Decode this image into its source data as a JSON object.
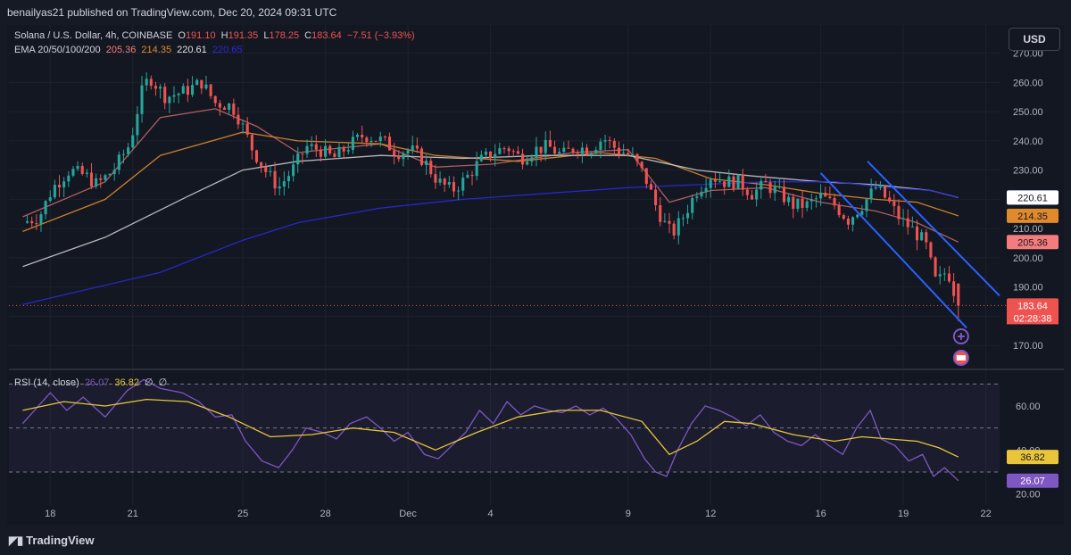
{
  "header": {
    "publisher": "benailyas21 published on TradingView.com, Dec 20, 2024 09:31 UTC"
  },
  "legend": {
    "symbol": "Solana / U.S. Dollar, 4h, COINBASE",
    "o_label": "O",
    "o": "191.10",
    "h_label": "H",
    "h": "191.35",
    "l_label": "L",
    "l": "178.25",
    "c_label": "C",
    "c": "183.64",
    "change": "−7.51 (−3.93%)",
    "ema_label": "EMA 20/50/100/200",
    "ema20": "205.36",
    "ema50": "214.35",
    "ema100": "220.61",
    "ema200": "220.65"
  },
  "rsi_legend": {
    "label": "RSI (14, close)",
    "rsi": "26.07",
    "ma": "36.82",
    "n1": "∅",
    "n2": "∅"
  },
  "currency_button": "USD",
  "footer": {
    "brand": "TradingView"
  },
  "colors": {
    "up": "#26a69a",
    "down": "#ef5350",
    "ema20": "#f47c7c",
    "ema50": "#e08a2c",
    "ema100": "#c9c9c9",
    "ema200": "#2a2ad8",
    "rsi": "#7e57c2",
    "rsi_ma": "#e8c53a",
    "channel": "#2962ff"
  },
  "chart_data": [
    {
      "type": "candlestick",
      "title": "Solana / U.S. Dollar, 4h, COINBASE",
      "ylim": [
        163,
        276
      ],
      "y_ticks": [
        170,
        180,
        190,
        200,
        210,
        220,
        230,
        240,
        250,
        260,
        270
      ],
      "y_tick_labels": [
        "170.00",
        "",
        "190.00",
        "200.00",
        "210.00",
        "220.00",
        "230.00",
        "240.00",
        "250.00",
        "260.00",
        "270.00"
      ],
      "x_tick_labels": [
        {
          "label": "18",
          "day": 1
        },
        {
          "label": "21",
          "day": 4
        },
        {
          "label": "25",
          "day": 8
        },
        {
          "label": "28",
          "day": 11
        },
        {
          "label": "Dec",
          "day": 14
        },
        {
          "label": "4",
          "day": 17
        },
        {
          "label": "9",
          "day": 22
        },
        {
          "label": "12",
          "day": 25
        },
        {
          "label": "16",
          "day": 29
        },
        {
          "label": "19",
          "day": 32
        },
        {
          "label": "22",
          "day": 35
        }
      ],
      "x_range_days": [
        -0.5,
        35.5
      ],
      "current_price": 183.64,
      "countdown": "02:28:38",
      "price_scale_badges": [
        {
          "value": 220.65,
          "label": "220.65",
          "bg": "#2a2ad8",
          "fg": "#ffffff"
        },
        {
          "value": 220.61,
          "label": "220.61",
          "bg": "#ffffff",
          "fg": "#131722"
        },
        {
          "value": 214.35,
          "label": "214.35",
          "bg": "#e08a2c",
          "fg": "#131722"
        },
        {
          "value": 205.36,
          "label": "205.36",
          "bg": "#f47c7c",
          "fg": "#131722"
        },
        {
          "value": 183.64,
          "label": "183.64",
          "bg": "#ef5350",
          "fg": "#ffffff"
        }
      ],
      "price_path": [
        [
          0,
          212
        ],
        [
          0.6,
          214
        ],
        [
          1.1,
          224
        ],
        [
          1.7,
          230
        ],
        [
          2.3,
          228
        ],
        [
          2.7,
          225
        ],
        [
          3.3,
          230
        ],
        [
          3.9,
          239
        ],
        [
          4.3,
          256
        ],
        [
          4.6,
          262
        ],
        [
          5.2,
          255
        ],
        [
          5.9,
          257
        ],
        [
          6.5,
          260
        ],
        [
          7.0,
          253
        ],
        [
          7.6,
          252
        ],
        [
          7.9,
          247
        ],
        [
          8.3,
          238
        ],
        [
          8.8,
          230
        ],
        [
          9.3,
          224
        ],
        [
          9.8,
          230
        ],
        [
          10.3,
          238
        ],
        [
          10.8,
          237
        ],
        [
          11.3,
          234
        ],
        [
          11.8,
          238
        ],
        [
          12.4,
          242
        ],
        [
          13.1,
          240
        ],
        [
          13.6,
          236
        ],
        [
          14.1,
          237
        ],
        [
          14.6,
          233
        ],
        [
          15.1,
          226
        ],
        [
          15.6,
          223
        ],
        [
          16.1,
          227
        ],
        [
          16.6,
          233
        ],
        [
          17.1,
          236
        ],
        [
          17.6,
          238
        ],
        [
          18.1,
          234
        ],
        [
          18.6,
          237
        ],
        [
          19.1,
          238
        ],
        [
          19.6,
          235
        ],
        [
          20.1,
          238
        ],
        [
          20.6,
          237
        ],
        [
          21.1,
          241
        ],
        [
          21.6,
          237
        ],
        [
          22.1,
          235
        ],
        [
          22.6,
          228
        ],
        [
          23.0,
          218
        ],
        [
          23.3,
          212
        ],
        [
          23.6,
          208
        ],
        [
          24.0,
          214
        ],
        [
          24.5,
          223
        ],
        [
          25.0,
          228
        ],
        [
          25.5,
          226
        ],
        [
          26.0,
          226
        ],
        [
          26.5,
          222
        ],
        [
          27.0,
          225
        ],
        [
          27.5,
          222
        ],
        [
          28.0,
          218
        ],
        [
          28.5,
          218
        ],
        [
          29.0,
          221
        ],
        [
          29.5,
          218
        ],
        [
          30.0,
          213
        ],
        [
          30.5,
          218
        ],
        [
          31.0,
          224
        ],
        [
          31.4,
          220
        ],
        [
          31.9,
          213
        ],
        [
          32.3,
          210
        ],
        [
          32.8,
          205
        ],
        [
          33.2,
          191
        ],
        [
          33.6,
          196
        ],
        [
          34.0,
          183.6
        ]
      ],
      "ema_series": {
        "ema20": [
          [
            0,
            214
          ],
          [
            3,
            226
          ],
          [
            5,
            248
          ],
          [
            7,
            251
          ],
          [
            8.5,
            245
          ],
          [
            10,
            236
          ],
          [
            13,
            239
          ],
          [
            15,
            231
          ],
          [
            17,
            232
          ],
          [
            20,
            236
          ],
          [
            22,
            237
          ],
          [
            23.5,
            219
          ],
          [
            25,
            223
          ],
          [
            27,
            224
          ],
          [
            29,
            219
          ],
          [
            31,
            216
          ],
          [
            32.5,
            212
          ],
          [
            34,
            205.36
          ]
        ],
        "ema50": [
          [
            0,
            209
          ],
          [
            3,
            220
          ],
          [
            5,
            235
          ],
          [
            8,
            243
          ],
          [
            10,
            240
          ],
          [
            13,
            239
          ],
          [
            15,
            235
          ],
          [
            18,
            233
          ],
          [
            21,
            236
          ],
          [
            23,
            234
          ],
          [
            25,
            227
          ],
          [
            27,
            225
          ],
          [
            29,
            222
          ],
          [
            31,
            220
          ],
          [
            32.5,
            219
          ],
          [
            34,
            214.35
          ]
        ],
        "ema100": [
          [
            0,
            197
          ],
          [
            3,
            207
          ],
          [
            6,
            221
          ],
          [
            8,
            230
          ],
          [
            10,
            233
          ],
          [
            13,
            235
          ],
          [
            16,
            234
          ],
          [
            19,
            235
          ],
          [
            22,
            235
          ],
          [
            24.5,
            230
          ],
          [
            26.5,
            228
          ],
          [
            29,
            226
          ],
          [
            31,
            225
          ],
          [
            33,
            223
          ],
          [
            34,
            220.61
          ]
        ],
        "ema200": [
          [
            0,
            184
          ],
          [
            5,
            195
          ],
          [
            8,
            206
          ],
          [
            10,
            212
          ],
          [
            13,
            217
          ],
          [
            16,
            220
          ],
          [
            19,
            222
          ],
          [
            22,
            224
          ],
          [
            24.5,
            225
          ],
          [
            27,
            226
          ],
          [
            29.5,
            226
          ],
          [
            31.5,
            224
          ],
          [
            33,
            223
          ],
          [
            34,
            220.65
          ]
        ]
      },
      "channel_lines": [
        {
          "from": [
            29,
            229
          ],
          "to": [
            34.3,
            176
          ]
        },
        {
          "from": [
            30.7,
            233
          ],
          "to": [
            35.5,
            187
          ]
        }
      ]
    },
    {
      "type": "line",
      "title": "RSI (14, close)",
      "ylim": [
        15,
        75
      ],
      "y_tick_labels": [
        {
          "value": 60,
          "label": "60.00"
        },
        {
          "value": 40,
          "label": "40.00"
        },
        {
          "value": 20,
          "label": "20.00"
        }
      ],
      "bands": [
        30,
        50,
        70
      ],
      "series": [
        {
          "name": "RSI",
          "values": [
            [
              0,
              52
            ],
            [
              1,
              66
            ],
            [
              1.6,
              58
            ],
            [
              2.2,
              64
            ],
            [
              3,
              55
            ],
            [
              3.8,
              67
            ],
            [
              4.4,
              72
            ],
            [
              5,
              68
            ],
            [
              5.8,
              66
            ],
            [
              6.4,
              62
            ],
            [
              7,
              55
            ],
            [
              7.6,
              56
            ],
            [
              8.1,
              44
            ],
            [
              8.7,
              35
            ],
            [
              9.3,
              32
            ],
            [
              9.8,
              40
            ],
            [
              10.3,
              50
            ],
            [
              10.9,
              48
            ],
            [
              11.4,
              45
            ],
            [
              11.9,
              52
            ],
            [
              12.5,
              55
            ],
            [
              13,
              50
            ],
            [
              13.5,
              44
            ],
            [
              14,
              48
            ],
            [
              14.6,
              38
            ],
            [
              15.1,
              36
            ],
            [
              15.6,
              42
            ],
            [
              16.1,
              48
            ],
            [
              16.6,
              58
            ],
            [
              17.1,
              52
            ],
            [
              17.6,
              62
            ],
            [
              18.1,
              56
            ],
            [
              18.6,
              60
            ],
            [
              19.1,
              58
            ],
            [
              19.6,
              57
            ],
            [
              20.1,
              60
            ],
            [
              20.6,
              56
            ],
            [
              21.1,
              59
            ],
            [
              21.6,
              54
            ],
            [
              22.1,
              47
            ],
            [
              22.6,
              36
            ],
            [
              23.0,
              30
            ],
            [
              23.4,
              28
            ],
            [
              23.8,
              40
            ],
            [
              24.3,
              52
            ],
            [
              24.8,
              60
            ],
            [
              25.3,
              58
            ],
            [
              25.8,
              55
            ],
            [
              26.3,
              51
            ],
            [
              26.8,
              56
            ],
            [
              27.3,
              48
            ],
            [
              27.8,
              44
            ],
            [
              28.3,
              42
            ],
            [
              28.8,
              47
            ],
            [
              29.3,
              42
            ],
            [
              29.8,
              38
            ],
            [
              30.3,
              50
            ],
            [
              30.8,
              58
            ],
            [
              31.2,
              45
            ],
            [
              31.7,
              42
            ],
            [
              32.2,
              35
            ],
            [
              32.7,
              38
            ],
            [
              33.1,
              28
            ],
            [
              33.5,
              32
            ],
            [
              34.0,
              26.07
            ]
          ]
        },
        {
          "name": "RSI-based MA",
          "values": [
            [
              0,
              58
            ],
            [
              1.5,
              62
            ],
            [
              3,
              60
            ],
            [
              4.5,
              63
            ],
            [
              6,
              62
            ],
            [
              7.5,
              55
            ],
            [
              9,
              46
            ],
            [
              10.5,
              47
            ],
            [
              12,
              50
            ],
            [
              13.5,
              48
            ],
            [
              15,
              40
            ],
            [
              16.5,
              48
            ],
            [
              18,
              55
            ],
            [
              19.5,
              58
            ],
            [
              21,
              58
            ],
            [
              22.5,
              53
            ],
            [
              23.5,
              38
            ],
            [
              24.5,
              44
            ],
            [
              25.5,
              53
            ],
            [
              26.5,
              52
            ],
            [
              28,
              47
            ],
            [
              29.5,
              44
            ],
            [
              30.5,
              46
            ],
            [
              31.5,
              45
            ],
            [
              32.5,
              44
            ],
            [
              33.3,
              41
            ],
            [
              34,
              36.82
            ]
          ]
        }
      ]
    }
  ]
}
